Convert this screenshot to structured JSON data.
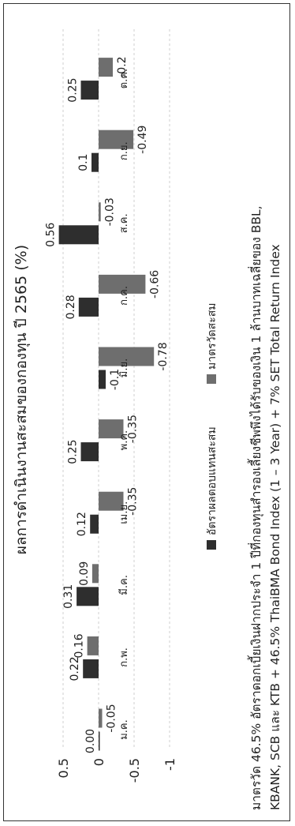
{
  "chart_data": {
    "type": "bar",
    "title": "ผลการดำเนินงานสะสมของกองทุน ปี 2565 (%)",
    "categories": [
      "ม.ค.",
      "ก.พ.",
      "มี.ค.",
      "เม.ย.",
      "พ.ค.",
      "มิ.ย.",
      "ก.ค.",
      "ส.ค.",
      "ก.ย.",
      "ต.ค."
    ],
    "series": [
      {
        "name": "อัตราผลตอบแทนสะสม",
        "color": "#2e2e2e",
        "values": [
          0.0,
          0.22,
          0.31,
          0.12,
          0.25,
          -0.1,
          0.28,
          0.56,
          0.1,
          0.25
        ],
        "labels": [
          "0.00",
          "0.22",
          "0.31",
          "0.12",
          "0.25",
          "-0.1",
          "0.28",
          "0.56",
          "0.1",
          "0.25"
        ]
      },
      {
        "name": "มาตรวัดสะสม",
        "color": "#6e6e6e",
        "values": [
          -0.05,
          0.16,
          0.09,
          -0.35,
          -0.35,
          -0.78,
          -0.66,
          -0.03,
          -0.49,
          -0.2
        ],
        "labels": [
          "-0.05",
          "0.16",
          "0.09",
          "-0.35",
          "-0.35",
          "-0.78",
          "-0.66",
          "-0.03",
          "-0.49",
          "-0.2"
        ]
      }
    ],
    "yticks": [
      0.5,
      0,
      -0.5,
      -1
    ],
    "ytick_labels": [
      "0.5",
      "0",
      "-0.5",
      "-1"
    ],
    "ylim": [
      -1.2,
      0.6
    ],
    "grid": true,
    "legend_position": "bottom",
    "xlabel": "",
    "ylabel": ""
  },
  "footnote": {
    "line1": "มาตรวัด 46.5% อัตราดอกเบี้ยเงินฝากประจำ 1 ปีที่กองทุนสำรองเลี้ยงชีพพึงได้รับของเงิน 1 ล้านบาทเฉลี่ยของ BBL,",
    "line2": "KBANK, SCB และ KTB + 46.5% ThaiBMA Bond Index (1 – 3 Year) + 7% SET Total Return Index"
  }
}
